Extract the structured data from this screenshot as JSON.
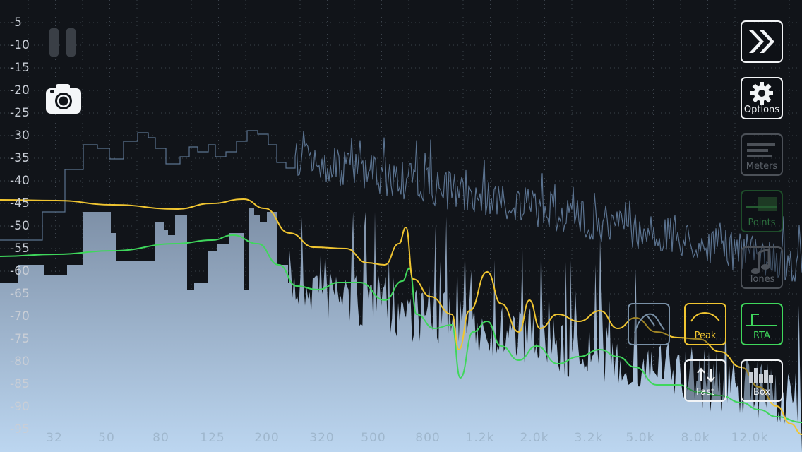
{
  "y_axis_labels": [
    "-5",
    "-10",
    "-15",
    "-20",
    "-25",
    "-30",
    "-35",
    "-40",
    "-45",
    "-50",
    "-55",
    "-60",
    "-65",
    "-70",
    "-75",
    "-80",
    "-85",
    "-90",
    "-95"
  ],
  "x_axis_labels": [
    "32",
    "50",
    "80",
    "125",
    "200",
    "320",
    "500",
    "800",
    "1.2k",
    "2.0k",
    "3.2k",
    "5.0k",
    "8.0k",
    "12.0k"
  ],
  "buttons": {
    "next": {
      "icon": "fast-forward-icon"
    },
    "options": {
      "label": "Options",
      "icon": "gear-icon"
    },
    "meters": {
      "label": "Meters",
      "icon": "meter-bars-icon"
    },
    "points": {
      "label": "Points",
      "icon": "points-icon"
    },
    "tones": {
      "label": "Tones",
      "icon": "music-note-icon"
    },
    "avg": {
      "icon": "average-curve-icon"
    },
    "peak": {
      "label": "Peak",
      "icon": "peak-curve-icon"
    },
    "rta": {
      "label": "RTA",
      "icon": "rta-curve-icon"
    },
    "fast": {
      "label": "Fast",
      "icon": "arrows-up-down-icon"
    },
    "box": {
      "label": "Box",
      "icon": "box-bars-icon"
    }
  },
  "colors": {
    "background": "#111419",
    "grid": "#3c434c",
    "peak_line": "#f0c531",
    "green_line": "#3fd75c",
    "spectrum_top": "#7d8fa6",
    "spectrum_bottom": "#b9d2ec",
    "history_line": "#5b7390"
  }
}
